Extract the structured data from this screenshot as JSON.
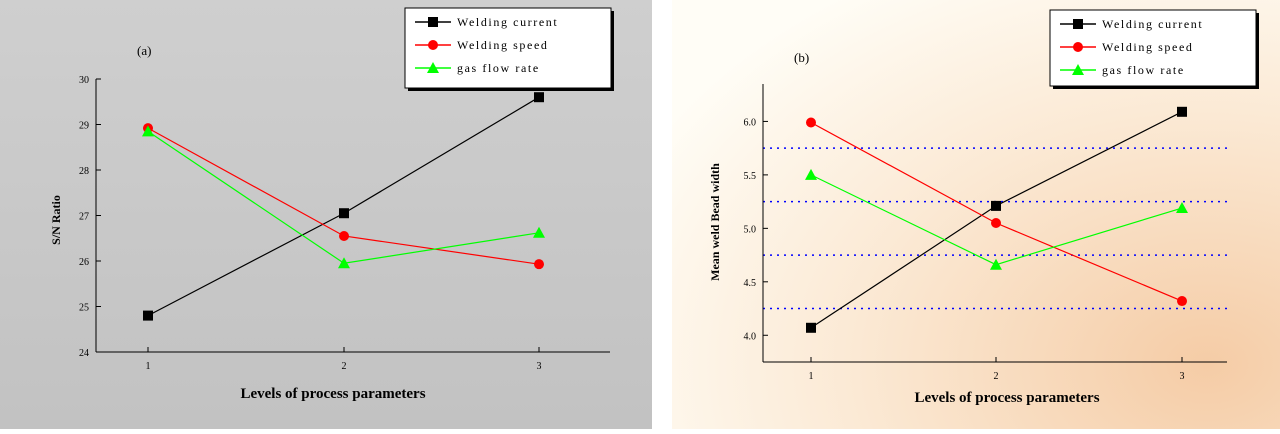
{
  "chart_data": [
    {
      "type": "line",
      "panel_label": "(a)",
      "xlabel": "Levels of process parameters",
      "ylabel": "S/N Ratio",
      "categories": [
        "1",
        "2",
        "3"
      ],
      "ylim": [
        24,
        30
      ],
      "yticks": [
        "24",
        "25",
        "26",
        "27",
        "28",
        "29",
        "30"
      ],
      "series": [
        {
          "name": "Welding current",
          "values": [
            24.8,
            27.05,
            29.6
          ],
          "color": "#000000",
          "marker": "square"
        },
        {
          "name": "Welding speed",
          "values": [
            28.92,
            26.55,
            25.93
          ],
          "color": "#ff0000",
          "marker": "circle"
        },
        {
          "name": "gas flow rate",
          "values": [
            28.85,
            25.95,
            26.62
          ],
          "color": "#00ff00",
          "marker": "triangle"
        }
      ],
      "background": "#c8c8c8",
      "legend": "top-right",
      "grid": false
    },
    {
      "type": "line",
      "panel_label": "(b)",
      "xlabel": "Levels of process parameters",
      "ylabel": "Mean weld Bead width",
      "categories": [
        "1",
        "2",
        "3"
      ],
      "ylim": [
        3.75,
        6.35
      ],
      "yticks": [
        "4.0",
        "4.5",
        "5.0",
        "5.5",
        "6.0"
      ],
      "series": [
        {
          "name": "Welding current",
          "values": [
            4.07,
            5.21,
            6.09
          ],
          "color": "#000000",
          "marker": "square"
        },
        {
          "name": "Welding speed",
          "values": [
            5.99,
            5.05,
            4.32
          ],
          "color": "#ff0000",
          "marker": "circle"
        },
        {
          "name": "gas flow rate",
          "values": [
            5.5,
            4.66,
            5.19
          ],
          "color": "#00ff00",
          "marker": "triangle"
        }
      ],
      "gridlines_y": [
        4.25,
        4.75,
        5.25,
        5.75
      ],
      "gridline_color": "#0000ff",
      "legend": "top-right",
      "grid": true
    }
  ]
}
